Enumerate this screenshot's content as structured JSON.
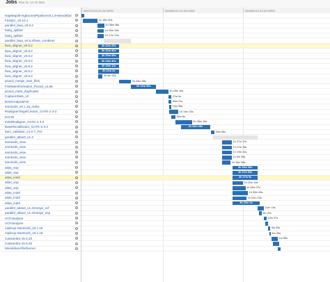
{
  "header": {
    "title": "Jobs",
    "subtitle": "Ran for 14 1h 50m"
  },
  "axis": [
    "06/07/2013 02:26:36PM",
    "06/08/2013 01:18:04AM",
    "06/08/2013 03:32:06PM"
  ],
  "jobs": [
    {
      "name": "HapMap38-HgExomePipelineV5.1.9-Mendelian",
      "start": 0.0,
      "end": 0.012,
      "label": "",
      "pending": false,
      "hl": false
    },
    {
      "name": "FastQC_v0.10.1",
      "start": 0.005,
      "end": 0.065,
      "label": "1h 19m 40s",
      "pending": false,
      "hl": false
    },
    {
      "name": "parallel_bwa_v0.6.2",
      "start": 0.065,
      "end": 0.092,
      "label": "1h 38m 48s",
      "pending": false,
      "hl": false
    },
    {
      "name": "fastq_splitter",
      "start": 0.065,
      "end": 0.09,
      "label": "1h 15m 28s",
      "pending": false,
      "hl": false
    },
    {
      "name": "fastq_splitter",
      "start": 0.065,
      "end": 0.09,
      "label": "1h 17m 19s",
      "pending": false,
      "hl": false
    },
    {
      "name": "parallel_bwa_v0.6.2/bwa_combiner",
      "start": 0.09,
      "end": 0.2,
      "label": "",
      "pending": true,
      "hl": false
    },
    {
      "name": "bwa_aligner_v0.6.2",
      "start": 0.068,
      "end": 0.152,
      "label": "3h 32m 29s",
      "pending": false,
      "hl": true
    },
    {
      "name": "bwa_aligner_v0.6.2",
      "start": 0.068,
      "end": 0.152,
      "label": "3h 31m 40s",
      "pending": false,
      "hl": false
    },
    {
      "name": "bwa_aligner_v0.6.2",
      "start": 0.068,
      "end": 0.152,
      "label": "3h 30m 59s",
      "pending": false,
      "hl": false
    },
    {
      "name": "bwa_aligner_v0.6.2",
      "start": 0.068,
      "end": 0.152,
      "label": "3h 18m 40s",
      "pending": false,
      "hl": false
    },
    {
      "name": "bwa_aligner_v0.6.2",
      "start": 0.068,
      "end": 0.152,
      "label": "3h 40m 12s",
      "pending": false,
      "hl": false
    },
    {
      "name": "bwa_aligner_v0.6.2",
      "start": 0.068,
      "end": 0.152,
      "label": "3h 21m 4s",
      "pending": false,
      "hl": false
    },
    {
      "name": "bwa_aligner_v0.6.2",
      "start": 0.068,
      "end": 0.085,
      "label": "2h 9m 32s",
      "pending": false,
      "hl": false
    },
    {
      "name": "picard_merge_sam_files",
      "start": 0.152,
      "end": 0.2,
      "label": "1h 43m 38s",
      "pending": false,
      "hl": false
    },
    {
      "name": "FixMateInformation_Picard_v1.88",
      "start": 0.2,
      "end": 0.3,
      "label": "3h 22m 50s",
      "pending": false,
      "hl": false
    },
    {
      "name": "picard_mark_duplicates",
      "start": 0.3,
      "end": 0.35,
      "label": "1h 29m 16s",
      "pending": false,
      "hl": false
    },
    {
      "name": "CaptureStats_v0",
      "start": 0.35,
      "end": 0.362,
      "label": "27m 5s",
      "pending": false,
      "hl": false
    },
    {
      "name": "BAMAnalysisFW",
      "start": 0.35,
      "end": 0.362,
      "label": "39m 21s",
      "pending": false,
      "hl": false
    },
    {
      "name": "samtools_v0.1.18_index",
      "start": 0.352,
      "end": 0.362,
      "label": "10m 38s",
      "pending": false,
      "hl": false
    },
    {
      "name": "RealignerTargetCreator_GATK-2.3-2",
      "start": 0.352,
      "end": 0.39,
      "label": "1h 14m 24s",
      "pending": false,
      "hl": false
    },
    {
      "name": "ExCID",
      "start": 0.362,
      "end": 0.378,
      "label": "53m 8s",
      "pending": false,
      "hl": false
    },
    {
      "name": "IndelRealigner_GATK-2.3-2",
      "start": 0.378,
      "end": 0.445,
      "label": "2h 36m 16s",
      "pending": false,
      "hl": false
    },
    {
      "name": "BaseRecalibrator_GATK-2.3-2",
      "start": 0.4,
      "end": 0.518,
      "label": "2h 32m 28s",
      "pending": false,
      "hl": false
    },
    {
      "name": "bam_validator_v1.0.7_FIX",
      "start": 0.52,
      "end": 0.535,
      "label": "39m 56s",
      "pending": false,
      "hl": false
    },
    {
      "name": "parallel_atlas3_v1.4",
      "start": 0.53,
      "end": 0.71,
      "label": "",
      "pending": true,
      "hl": false
    },
    {
      "name": "samtools_view",
      "start": 0.565,
      "end": 0.605,
      "label": "1h 27m 37s",
      "pending": false,
      "hl": false
    },
    {
      "name": "samtools_view",
      "start": 0.565,
      "end": 0.605,
      "label": "1h 17m 36s",
      "pending": false,
      "hl": false
    },
    {
      "name": "samtools_view",
      "start": 0.565,
      "end": 0.605,
      "label": "1h 19m 24s",
      "pending": false,
      "hl": false
    },
    {
      "name": "samtools_view",
      "start": 0.565,
      "end": 0.605,
      "label": "1h 3m 35s",
      "pending": false,
      "hl": false
    },
    {
      "name": "samtools_view",
      "start": 0.565,
      "end": 0.6,
      "label": "1h 15m 56s",
      "pending": false,
      "hl": false
    },
    {
      "name": "atlas_snp",
      "start": 0.607,
      "end": 0.71,
      "label": "4h 15m 35s",
      "pending": false,
      "hl": false
    },
    {
      "name": "atlas_snp",
      "start": 0.607,
      "end": 0.71,
      "label": "4h 37m 53s",
      "pending": false,
      "hl": false
    },
    {
      "name": "atlas_indel",
      "start": 0.607,
      "end": 0.71,
      "label": "4h 27m 9s",
      "pending": false,
      "hl": true
    },
    {
      "name": "atlas_snp",
      "start": 0.607,
      "end": 0.65,
      "label": "1h 22m 19s",
      "pending": false,
      "hl": false
    },
    {
      "name": "atlas_snp",
      "start": 0.607,
      "end": 0.66,
      "label": "1h 36m 37s",
      "pending": false,
      "hl": false
    },
    {
      "name": "atlas_indel",
      "start": 0.607,
      "end": 0.67,
      "label": "1h 59m 46s",
      "pending": false,
      "hl": false
    },
    {
      "name": "atlas_indel",
      "start": 0.607,
      "end": 0.665,
      "label": "1h 51m 23s",
      "pending": false,
      "hl": false
    },
    {
      "name": "atlas_indel",
      "start": 0.607,
      "end": 0.718,
      "label": "3h 32m 2s",
      "pending": false,
      "hl": false
    },
    {
      "name": "parallel_atlas3_v1.4/merge_vcf",
      "start": 0.71,
      "end": 0.735,
      "label": "21m 13s",
      "pending": false,
      "hl": false
    },
    {
      "name": "parallel_atlas3_v1.4/merge_snp",
      "start": 0.715,
      "end": 0.725,
      "label": "9m 41s",
      "pending": false,
      "hl": false
    },
    {
      "name": "VCFanalyser",
      "start": 0.735,
      "end": 0.745,
      "label": "12m 47s",
      "pending": false,
      "hl": false
    },
    {
      "name": "VCFanalyser",
      "start": 0.74,
      "end": 0.752,
      "label": "",
      "pending": false,
      "hl": false
    },
    {
      "name": "mpileup-Samtools_v0.1.18",
      "start": 0.752,
      "end": 0.76,
      "label": "6m 25s",
      "pending": false,
      "hl": false
    },
    {
      "name": "mpileup-Samtools_v0.1.18",
      "start": 0.755,
      "end": 0.762,
      "label": "5m 39s",
      "pending": false,
      "hl": false
    },
    {
      "name": "Cassandra-15.6.20",
      "start": 0.765,
      "end": 0.79,
      "label": "1m 58s",
      "pending": false,
      "hl": false
    },
    {
      "name": "Cassandra-15.6.20",
      "start": 0.77,
      "end": 0.795,
      "label": "",
      "pending": false,
      "hl": false
    },
    {
      "name": "MendelianAfterburner",
      "start": 0.79,
      "end": 0.8,
      "label": "",
      "pending": false,
      "hl": false
    }
  ],
  "colors": {
    "bar": "#2a6fb5",
    "pending": "#e4e4e4",
    "highlight": "#fff8c8"
  },
  "icons": {
    "row_action": "target-icon"
  }
}
